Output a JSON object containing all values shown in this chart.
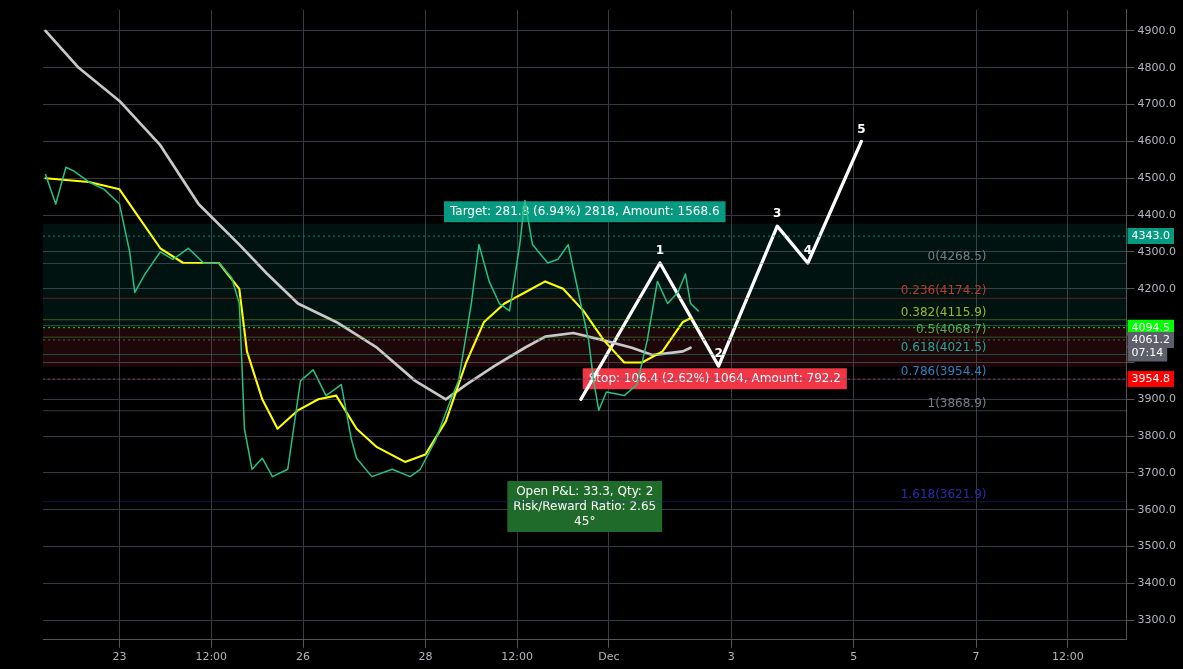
{
  "chart_data": {
    "type": "line",
    "xlim": [
      "--11-21T18:00",
      "--12-09T11:00"
    ],
    "xticks": [
      {
        "value": "--11-23",
        "label": "23"
      },
      {
        "value": "--11-24T12:00",
        "label": "12:00"
      },
      {
        "value": "--11-26",
        "label": "26"
      },
      {
        "value": "--11-28",
        "label": "28"
      },
      {
        "value": "--11-29T12:00",
        "label": "12:00"
      },
      {
        "value": "--12-01",
        "label": "Dec"
      },
      {
        "value": "--12-03",
        "label": "3"
      },
      {
        "value": "--12-05",
        "label": "5"
      },
      {
        "value": "--12-07",
        "label": "7"
      },
      {
        "value": "--12-08T12:00",
        "label": "12:00"
      }
    ],
    "ylim": [
      3247,
      4958
    ],
    "yticks": [
      {
        "value": 3300,
        "label": "3300.0"
      },
      {
        "value": 3400,
        "label": "3400.0"
      },
      {
        "value": 3500,
        "label": "3500.0"
      },
      {
        "value": 3600,
        "label": "3600.0"
      },
      {
        "value": 3700,
        "label": "3700.0"
      },
      {
        "value": 3800,
        "label": "3800.0"
      },
      {
        "value": 3900,
        "label": "3900.0"
      },
      {
        "value": 4000,
        "label": null
      },
      {
        "value": 4100,
        "label": null
      },
      {
        "value": 4200,
        "label": "4200.0"
      },
      {
        "value": 4300,
        "label": "4300.0"
      },
      {
        "value": 4400,
        "label": "4400.0"
      },
      {
        "value": 4500,
        "label": "4500.0"
      },
      {
        "value": 4600,
        "label": "4600.0"
      },
      {
        "value": 4700,
        "label": "4700.0"
      },
      {
        "value": 4800,
        "label": "4800.0"
      },
      {
        "value": 4900,
        "label": "4900.0"
      }
    ],
    "grid": true,
    "legend": false,
    "marker": "none",
    "line_style": "solid",
    "series": [
      {
        "color": "#26c281",
        "x": [
          "--11-21T19:00",
          "--11-21T23:00",
          "--11-22T03:00",
          "--11-22T06:00",
          "--11-22T12:00",
          "--11-22T18:00",
          "--11-23T00:00",
          "--11-23T04:00",
          "--11-23T06:00",
          "--11-23T10:00",
          "--11-23T16:00",
          "--11-23T21:00",
          "--11-24T03:00",
          "--11-24T09:00",
          "--11-24T15:00",
          "--11-24T20:00",
          "--11-24T23:00",
          "--11-25T00:00",
          "--11-25T01:00",
          "--11-25T04:00",
          "--11-25T08:00",
          "--11-25T12:00",
          "--11-25T18:00",
          "--11-25T23:00",
          "--11-26T04:00",
          "--11-26T09:00",
          "--11-26T15:00",
          "--11-26T19:00",
          "--11-26T21:00",
          "--11-27T03:00",
          "--11-27T11:00",
          "--11-27T18:00",
          "--11-27T22:00",
          "--11-28T04:00",
          "--11-28T10:00",
          "--11-28T13:00",
          "--11-28T18:00",
          "--11-28T21:00",
          "--11-29T01:00",
          "--11-29T05:00",
          "--11-29T09:00",
          "--11-29T13:00",
          "--11-29T15:00",
          "--11-29T18:00",
          "--11-30T00:00",
          "--11-30T04:00",
          "--11-30T08:00",
          "--11-30T12:00",
          "--11-30T16:00",
          "--11-30T18:00",
          "--11-30T20:00",
          "--11-30T23:00",
          "--12-01T06:00",
          "--12-01T11:00",
          "--12-01T15:00",
          "--12-01T19:00",
          "--12-01T23:00",
          "--12-02T03:00",
          "--12-02T06:00",
          "--12-02T08:00",
          "--12-02T11:00"
        ],
        "values": [
          4510,
          4430,
          4530,
          4520,
          4490,
          4470,
          4430,
          4300,
          4190,
          4240,
          4300,
          4280,
          4310,
          4270,
          4270,
          4230,
          4160,
          4000,
          3820,
          3710,
          3740,
          3690,
          3710,
          3950,
          3980,
          3910,
          3940,
          3790,
          3740,
          3690,
          3710,
          3690,
          3710,
          3790,
          3900,
          3950,
          4160,
          4320,
          4220,
          4160,
          4140,
          4320,
          4440,
          4320,
          4270,
          4280,
          4320,
          4190,
          4060,
          3950,
          3870,
          3920,
          3910,
          3940,
          4060,
          4220,
          4160,
          4190,
          4240,
          4160,
          4140
        ]
      },
      {
        "color": "#ffff00",
        "x": [
          "--11-21T19:00",
          "--11-22T12:00",
          "--11-23T00:00",
          "--11-23T08:00",
          "--11-23T16:00",
          "--11-24T01:00",
          "--11-24T15:00",
          "--11-24T23:00",
          "--11-25T02:00",
          "--11-25T08:00",
          "--11-25T14:00",
          "--11-25T22:00",
          "--11-26T06:00",
          "--11-26T13:00",
          "--11-26T21:00",
          "--11-27T05:00",
          "--11-27T16:00",
          "--11-28T00:00",
          "--11-28T08:00",
          "--11-28T16:00",
          "--11-28T23:00",
          "--11-29T07:00",
          "--11-29T15:00",
          "--11-29T23:00",
          "--11-30T06:00",
          "--11-30T14:00",
          "--11-30T22:00",
          "--12-01T06:00",
          "--12-01T13:00",
          "--12-01T21:00",
          "--12-02T05:00",
          "--12-02T08:00"
        ],
        "values": [
          4500,
          4490,
          4470,
          4390,
          4310,
          4270,
          4270,
          4200,
          4030,
          3900,
          3820,
          3870,
          3900,
          3910,
          3820,
          3770,
          3730,
          3750,
          3840,
          4000,
          4110,
          4160,
          4190,
          4220,
          4200,
          4140,
          4060,
          4000,
          4000,
          4030,
          4110,
          4120
        ]
      },
      {
        "color": "#c8c8c8",
        "x": [
          "--11-21T19:00",
          "--11-22T08:00",
          "--11-23T00:00",
          "--11-23T16:00",
          "--11-24T07:00",
          "--11-24T23:00",
          "--11-25T10:00",
          "--11-25T22:00",
          "--11-26T13:00",
          "--11-27T05:00",
          "--11-27T20:00",
          "--11-28T08:00",
          "--11-28T16:00",
          "--11-29T03:00",
          "--11-29T15:00",
          "--11-29T23:00",
          "--11-30T10:00",
          "--11-30T22:00",
          "--12-01T09:00",
          "--12-01T17:00",
          "--12-02T05:00",
          "--12-02T08:00"
        ],
        "values": [
          4900,
          4800,
          4710,
          4590,
          4430,
          4320,
          4240,
          4160,
          4110,
          4040,
          3950,
          3900,
          3940,
          3990,
          4040,
          4070,
          4080,
          4060,
          4040,
          4020,
          4030,
          4040
        ]
      },
      {
        "color": "#ffffff",
        "x": [
          "--11-30T13:00",
          "--12-01T20:00",
          "--12-02T19:00",
          "--12-03T18:00",
          "--12-04T06:00",
          "--12-05T03:00"
        ],
        "values": [
          3900,
          4270,
          3990,
          4370,
          4270,
          4600
        ]
      }
    ],
    "annotations": [
      {
        "text": "1",
        "x": "--12-01T20:00",
        "y": 4270
      },
      {
        "text": "2",
        "x": "--12-02T19:00",
        "y": 3990
      },
      {
        "text": "3",
        "x": "--12-03T18:00",
        "y": 4370
      },
      {
        "text": "4",
        "x": "--12-04T06:00",
        "y": 4270
      },
      {
        "text": "5",
        "x": "--12-05T03:00",
        "y": 4600
      },
      "Open P&L: 33.3, Qty: 2",
      "Risk/Reward Ratio: 2.65",
      "45°",
      {
        "text": "07:14",
        "y": 4024
      }
    ],
    "bands": [
      {
        "axis": "y",
        "from": 4094.5,
        "to": 4376.3,
        "label": "Target: 281.8 (6.94%) 2818, Amount: 1568.6",
        "color": "#089981"
      },
      {
        "axis": "y",
        "from": 3988.1,
        "to": 4094.5,
        "label": "Stop: 106.4 (2.62%) 1064, Amount: 792.2",
        "color": "#f23645"
      }
    ],
    "ref_lines": [
      {
        "axis": "y",
        "value": 4094.5,
        "label": "4094.5",
        "color": "#00ff00",
        "line_style": "dotted"
      },
      {
        "axis": "y",
        "value": 4343,
        "label": "4343.0",
        "color": "#089981",
        "line_style": "dotted"
      },
      {
        "axis": "y",
        "value": 4061.2,
        "label": "4061.2",
        "color": "#5d606b",
        "line_style": "dotted"
      },
      {
        "axis": "y",
        "value": 3954.8,
        "label": "3954.8",
        "color": "#ff0000",
        "line_style": "dotted"
      },
      {
        "axis": "y",
        "value": 4268.5,
        "label": "0(4268.5)",
        "color": "#787b86",
        "line_style": "solid"
      },
      {
        "axis": "y",
        "value": 4174.2,
        "label": "0.236(4174.2)",
        "color": "#c0392b",
        "line_style": "solid"
      },
      {
        "axis": "y",
        "value": 4115.9,
        "label": "0.382(4115.9)",
        "color": "#9ab82e",
        "line_style": "solid"
      },
      {
        "axis": "y",
        "value": 4068.7,
        "label": "0.5(4068.7)",
        "color": "#4caf50",
        "line_style": "solid"
      },
      {
        "axis": "y",
        "value": 4021.5,
        "label": "0.618(4021.5)",
        "color": "#26a69a",
        "line_style": "solid"
      },
      {
        "axis": "y",
        "value": 3954.4,
        "label": "0.786(3954.4)",
        "color": "#2f80c0",
        "line_style": "solid"
      },
      {
        "axis": "y",
        "value": 3868.9,
        "label": "1(3868.9)",
        "color": "#787b86",
        "line_style": "solid"
      },
      {
        "axis": "y",
        "value": 3621.9,
        "label": "1.618(3621.9)",
        "color": "#2b2bb0",
        "line_style": "solid"
      }
    ]
  }
}
